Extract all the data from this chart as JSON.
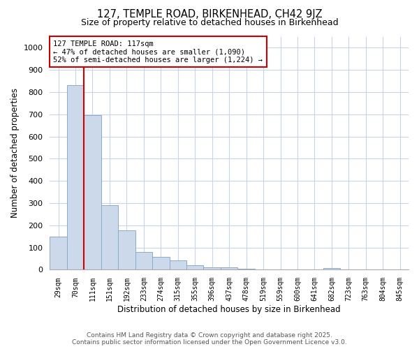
{
  "title_line1": "127, TEMPLE ROAD, BIRKENHEAD, CH42 9JZ",
  "title_line2": "Size of property relative to detached houses in Birkenhead",
  "xlabel": "Distribution of detached houses by size in Birkenhead",
  "ylabel": "Number of detached properties",
  "categories": [
    "29sqm",
    "70sqm",
    "111sqm",
    "151sqm",
    "192sqm",
    "233sqm",
    "274sqm",
    "315sqm",
    "355sqm",
    "396sqm",
    "437sqm",
    "478sqm",
    "519sqm",
    "559sqm",
    "600sqm",
    "641sqm",
    "682sqm",
    "723sqm",
    "763sqm",
    "804sqm",
    "845sqm"
  ],
  "values": [
    150,
    830,
    695,
    290,
    178,
    80,
    57,
    43,
    20,
    12,
    10,
    5,
    3,
    2,
    1,
    1,
    7,
    1,
    0,
    0,
    0
  ],
  "bar_color": "#ccd9ea",
  "bar_edge_color": "#8aaac8",
  "grid_color": "#c8d4e8",
  "vline_x": 1.5,
  "vline_color": "#cc0000",
  "annotation_text": "127 TEMPLE ROAD: 117sqm\n← 47% of detached houses are smaller (1,090)\n52% of semi-detached houses are larger (1,224) →",
  "annotation_box_color": "#ffffff",
  "annotation_box_edge": "#cc0000",
  "ylim": [
    0,
    1050
  ],
  "yticks": [
    0,
    100,
    200,
    300,
    400,
    500,
    600,
    700,
    800,
    900,
    1000
  ],
  "footer_line1": "Contains HM Land Registry data © Crown copyright and database right 2025.",
  "footer_line2": "Contains public sector information licensed under the Open Government Licence v3.0.",
  "bg_color": "#ffffff",
  "plot_bg_color": "#ffffff"
}
